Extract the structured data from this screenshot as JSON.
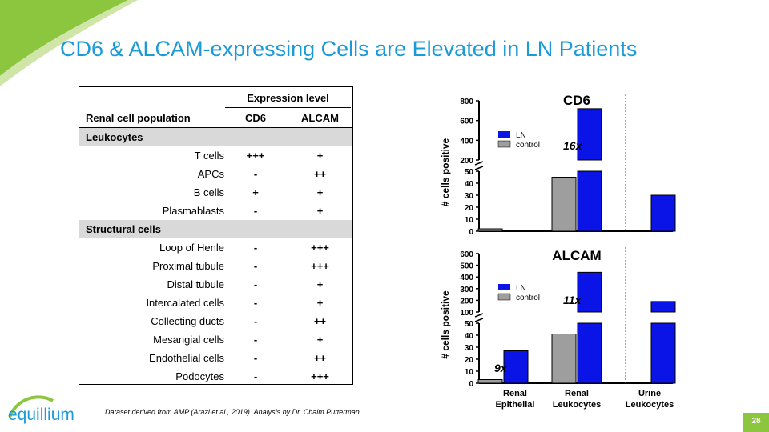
{
  "title": "CD6 & ALCAM-expressing Cells are Elevated in LN Patients",
  "table": {
    "expression_header": "Expression level",
    "col_population": "Renal cell population",
    "col_cd6": "CD6",
    "col_alcam": "ALCAM",
    "sections": [
      {
        "name": "Leukocytes",
        "rows": [
          {
            "name": "T cells",
            "cd6": "+++",
            "alcam": "+"
          },
          {
            "name": "APCs",
            "cd6": "-",
            "alcam": "++"
          },
          {
            "name": "B cells",
            "cd6": "+",
            "alcam": "+"
          },
          {
            "name": "Plasmablasts",
            "cd6": "-",
            "alcam": "+"
          }
        ]
      },
      {
        "name": "Structural cells",
        "rows": [
          {
            "name": "Loop of Henle",
            "cd6": "-",
            "alcam": "+++"
          },
          {
            "name": "Proximal tubule",
            "cd6": "-",
            "alcam": "+++"
          },
          {
            "name": "Distal tubule",
            "cd6": "-",
            "alcam": "+"
          },
          {
            "name": "Intercalated cells",
            "cd6": "-",
            "alcam": "+"
          },
          {
            "name": "Collecting ducts",
            "cd6": "-",
            "alcam": "++"
          },
          {
            "name": "Mesangial cells",
            "cd6": "-",
            "alcam": "+"
          },
          {
            "name": "Endothelial cells",
            "cd6": "-",
            "alcam": "++"
          },
          {
            "name": "Podocytes",
            "cd6": "-",
            "alcam": "+++"
          }
        ]
      }
    ]
  },
  "chart_data": [
    {
      "type": "bar",
      "title": "CD6",
      "ylabel": "# cells positive",
      "categories": [
        "Renal Epithelial",
        "Renal Leukocytes",
        "Urine Leukocytes"
      ],
      "series": [
        {
          "name": "LN",
          "values": [
            0,
            720,
            30
          ]
        },
        {
          "name": "control",
          "values": [
            2,
            45,
            null
          ]
        }
      ],
      "y_lower_range": [
        0,
        50
      ],
      "y_lower_ticks": [
        0,
        10,
        20,
        30,
        40,
        50
      ],
      "y_upper_range": [
        200,
        800
      ],
      "y_upper_ticks": [
        200,
        400,
        600,
        800
      ],
      "axis_break": true,
      "annotation": "16x",
      "legend_position": "top-left"
    },
    {
      "type": "bar",
      "title": "ALCAM",
      "ylabel": "# cells positive",
      "categories": [
        "Renal Epithelial",
        "Renal Leukocytes",
        "Urine Leukocytes"
      ],
      "series": [
        {
          "name": "LN",
          "values": [
            27,
            440,
            190
          ]
        },
        {
          "name": "control",
          "values": [
            3,
            41,
            null
          ]
        }
      ],
      "y_lower_range": [
        0,
        50
      ],
      "y_lower_ticks": [
        0,
        10,
        20,
        30,
        40,
        50
      ],
      "y_upper_range": [
        100,
        600
      ],
      "y_upper_ticks": [
        100,
        200,
        300,
        400,
        500,
        600
      ],
      "axis_break": true,
      "annotations": [
        "11x",
        "9x"
      ],
      "legend_position": "top-left"
    }
  ],
  "x_category_labels": [
    [
      "Renal",
      "Epithelial"
    ],
    [
      "Renal",
      "Leukocytes"
    ],
    [
      "Urine",
      "Leukocytes"
    ]
  ],
  "footer_note": "Dataset derived from AMP (Arazi et al., 2019). Analysis by Dr. Chaim Putterman.",
  "logo_text": "equillium",
  "page_number": "28",
  "colors": {
    "ln": "#0a14e6",
    "control": "#9e9e9e",
    "title": "#1a9ad6",
    "brand_green": "#8cc63f"
  }
}
